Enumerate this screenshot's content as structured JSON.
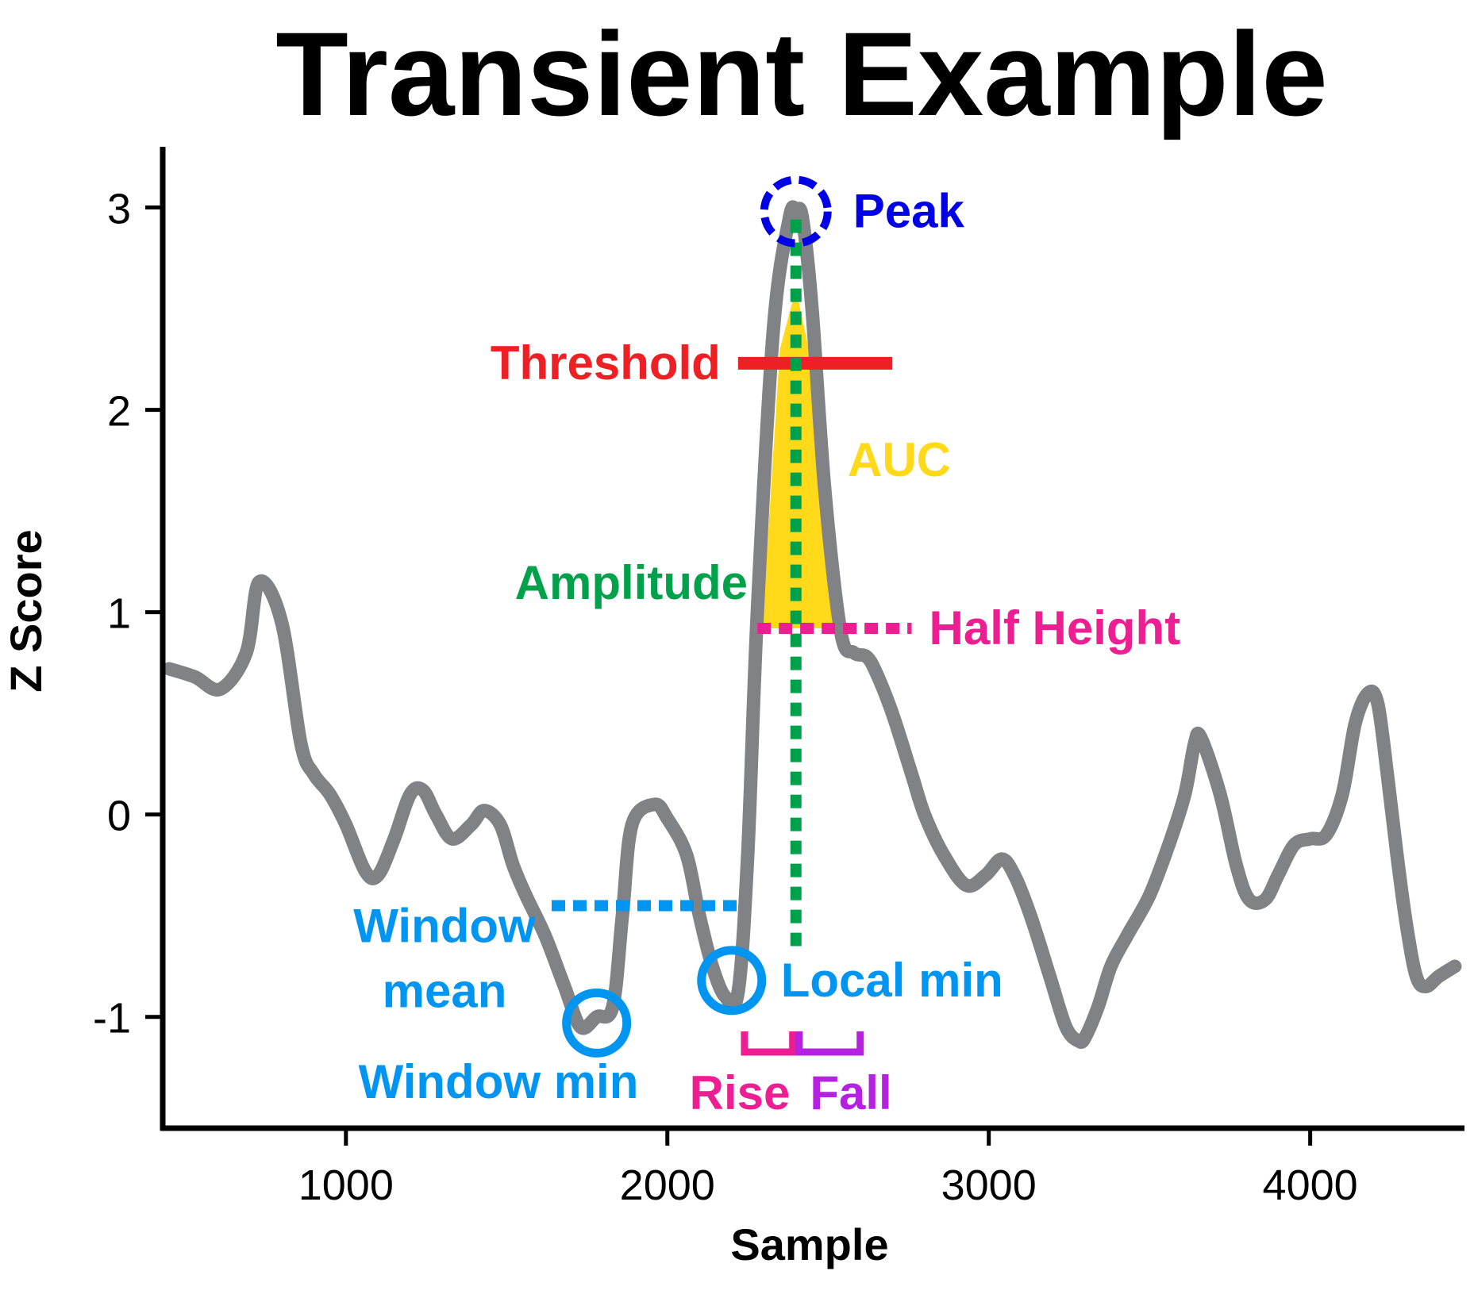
{
  "chart_data": {
    "type": "line",
    "title": "Transient Example",
    "xlabel": "Sample",
    "ylabel": "Z Score",
    "xlim": [
      430,
      4480
    ],
    "ylim": [
      -1.55,
      3.3
    ],
    "xticks": [
      1000,
      2000,
      3000,
      4000
    ],
    "xtick_labels": [
      "1000",
      "2000",
      "3000",
      "4000"
    ],
    "yticks": [
      -1,
      0,
      1,
      2,
      3
    ],
    "ytick_labels": [
      "-1",
      "0",
      "1",
      "2",
      "3"
    ],
    "grid": false,
    "series": [
      {
        "color": "#808285",
        "x": [
          450,
          530,
          610,
          690,
          730,
          800,
          860,
          900,
          950,
          1000,
          1060,
          1100,
          1150,
          1200,
          1240,
          1280,
          1330,
          1390,
          1430,
          1480,
          1520,
          1560,
          1620,
          1680,
          1730,
          1780,
          1830,
          1860,
          1890,
          1960,
          2000,
          2060,
          2100,
          2140,
          2180,
          2220,
          2250,
          2280,
          2330,
          2380,
          2400,
          2420,
          2450,
          2490,
          2540,
          2580,
          2620,
          2650,
          2700,
          2760,
          2800,
          2860,
          2930,
          2990,
          3040,
          3080,
          3130,
          3190,
          3240,
          3280,
          3300,
          3340,
          3380,
          3430,
          3500,
          3560,
          3610,
          3640,
          3660,
          3720,
          3770,
          3810,
          3860,
          3900,
          3950,
          4000,
          4050,
          4100,
          4140,
          4180,
          4210,
          4240,
          4270,
          4300,
          4330,
          4360,
          4400,
          4450
        ],
        "y": [
          0.72,
          0.68,
          0.62,
          0.8,
          1.15,
          0.95,
          0.35,
          0.2,
          0.1,
          -0.05,
          -0.28,
          -0.3,
          -0.12,
          0.1,
          0.12,
          0.0,
          -0.12,
          -0.05,
          0.02,
          -0.05,
          -0.25,
          -0.4,
          -0.6,
          -0.85,
          -1.05,
          -1.0,
          -0.95,
          -0.5,
          -0.05,
          0.05,
          -0.02,
          -0.2,
          -0.5,
          -0.75,
          -0.9,
          -0.88,
          -0.2,
          1.0,
          2.4,
          2.95,
          2.98,
          2.95,
          2.5,
          1.6,
          0.9,
          0.8,
          0.78,
          0.7,
          0.5,
          0.2,
          0.0,
          -0.2,
          -0.35,
          -0.3,
          -0.22,
          -0.3,
          -0.5,
          -0.8,
          -1.05,
          -1.12,
          -1.1,
          -0.95,
          -0.75,
          -0.6,
          -0.4,
          -0.15,
          0.1,
          0.35,
          0.38,
          0.1,
          -0.25,
          -0.42,
          -0.42,
          -0.3,
          -0.15,
          -0.12,
          -0.1,
          0.1,
          0.45,
          0.6,
          0.55,
          0.2,
          -0.2,
          -0.55,
          -0.8,
          -0.85,
          -0.8,
          -0.75
        ]
      }
    ],
    "annotations": {
      "peak": {
        "label": "Peak",
        "x": 2400,
        "y": 2.98,
        "color": "#0000e6"
      },
      "threshold": {
        "label": "Threshold",
        "x_start": 2220,
        "x_end": 2700,
        "y": 2.23,
        "color": "#ee2024"
      },
      "auc": {
        "label": "AUC",
        "color": "#ffd91a"
      },
      "amplitude": {
        "label": "Amplitude",
        "x": 2400,
        "y_start": -0.65,
        "y_end": 2.98,
        "color": "#00a14b"
      },
      "half_height": {
        "label": "Half Height",
        "x_start": 2280,
        "x_end": 2760,
        "y": 0.92,
        "color": "#ec1e91"
      },
      "window_mean": {
        "label_line1": "Window",
        "label_line2": "mean",
        "x_start": 1640,
        "x_end": 2230,
        "y": -0.45,
        "color": "#0095f0"
      },
      "window_min": {
        "label": "Window min",
        "x": 1780,
        "y": -1.03,
        "color": "#0095f0"
      },
      "local_min": {
        "label": "Local min",
        "x": 2200,
        "y": -0.82,
        "color": "#0095f0"
      },
      "rise": {
        "label": "Rise",
        "x_start": 2240,
        "x_end": 2390,
        "color": "#ec1e91"
      },
      "fall": {
        "label": "Fall",
        "x_start": 2410,
        "x_end": 2600,
        "color": "#b620e0"
      }
    }
  }
}
